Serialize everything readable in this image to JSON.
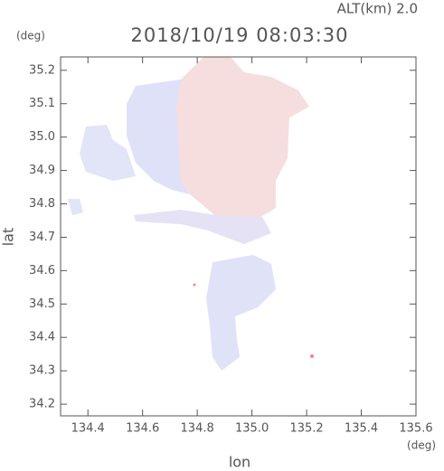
{
  "chart_data": {
    "type": "map",
    "title": "2018/10/19 08:03:30",
    "subtitle": "ALT(km) 2.0",
    "y_unit": "(deg)",
    "x_unit": "(deg)",
    "x_label": "lon",
    "y_label": "lat",
    "xlim": [
      134.3,
      135.6
    ],
    "ylim": [
      34.165,
      35.24
    ],
    "xticks": [
      134.4,
      134.6,
      134.8,
      {
        "value": 135,
        "label": "135.0"
      },
      135.2,
      135.4,
      135.6
    ],
    "yticks": [
      34.2,
      34.3,
      34.4,
      34.5,
      34.6,
      34.7,
      34.8,
      34.9,
      {
        "value": 35,
        "label": "35.0"
      },
      35.1,
      35.2
    ]
  }
}
